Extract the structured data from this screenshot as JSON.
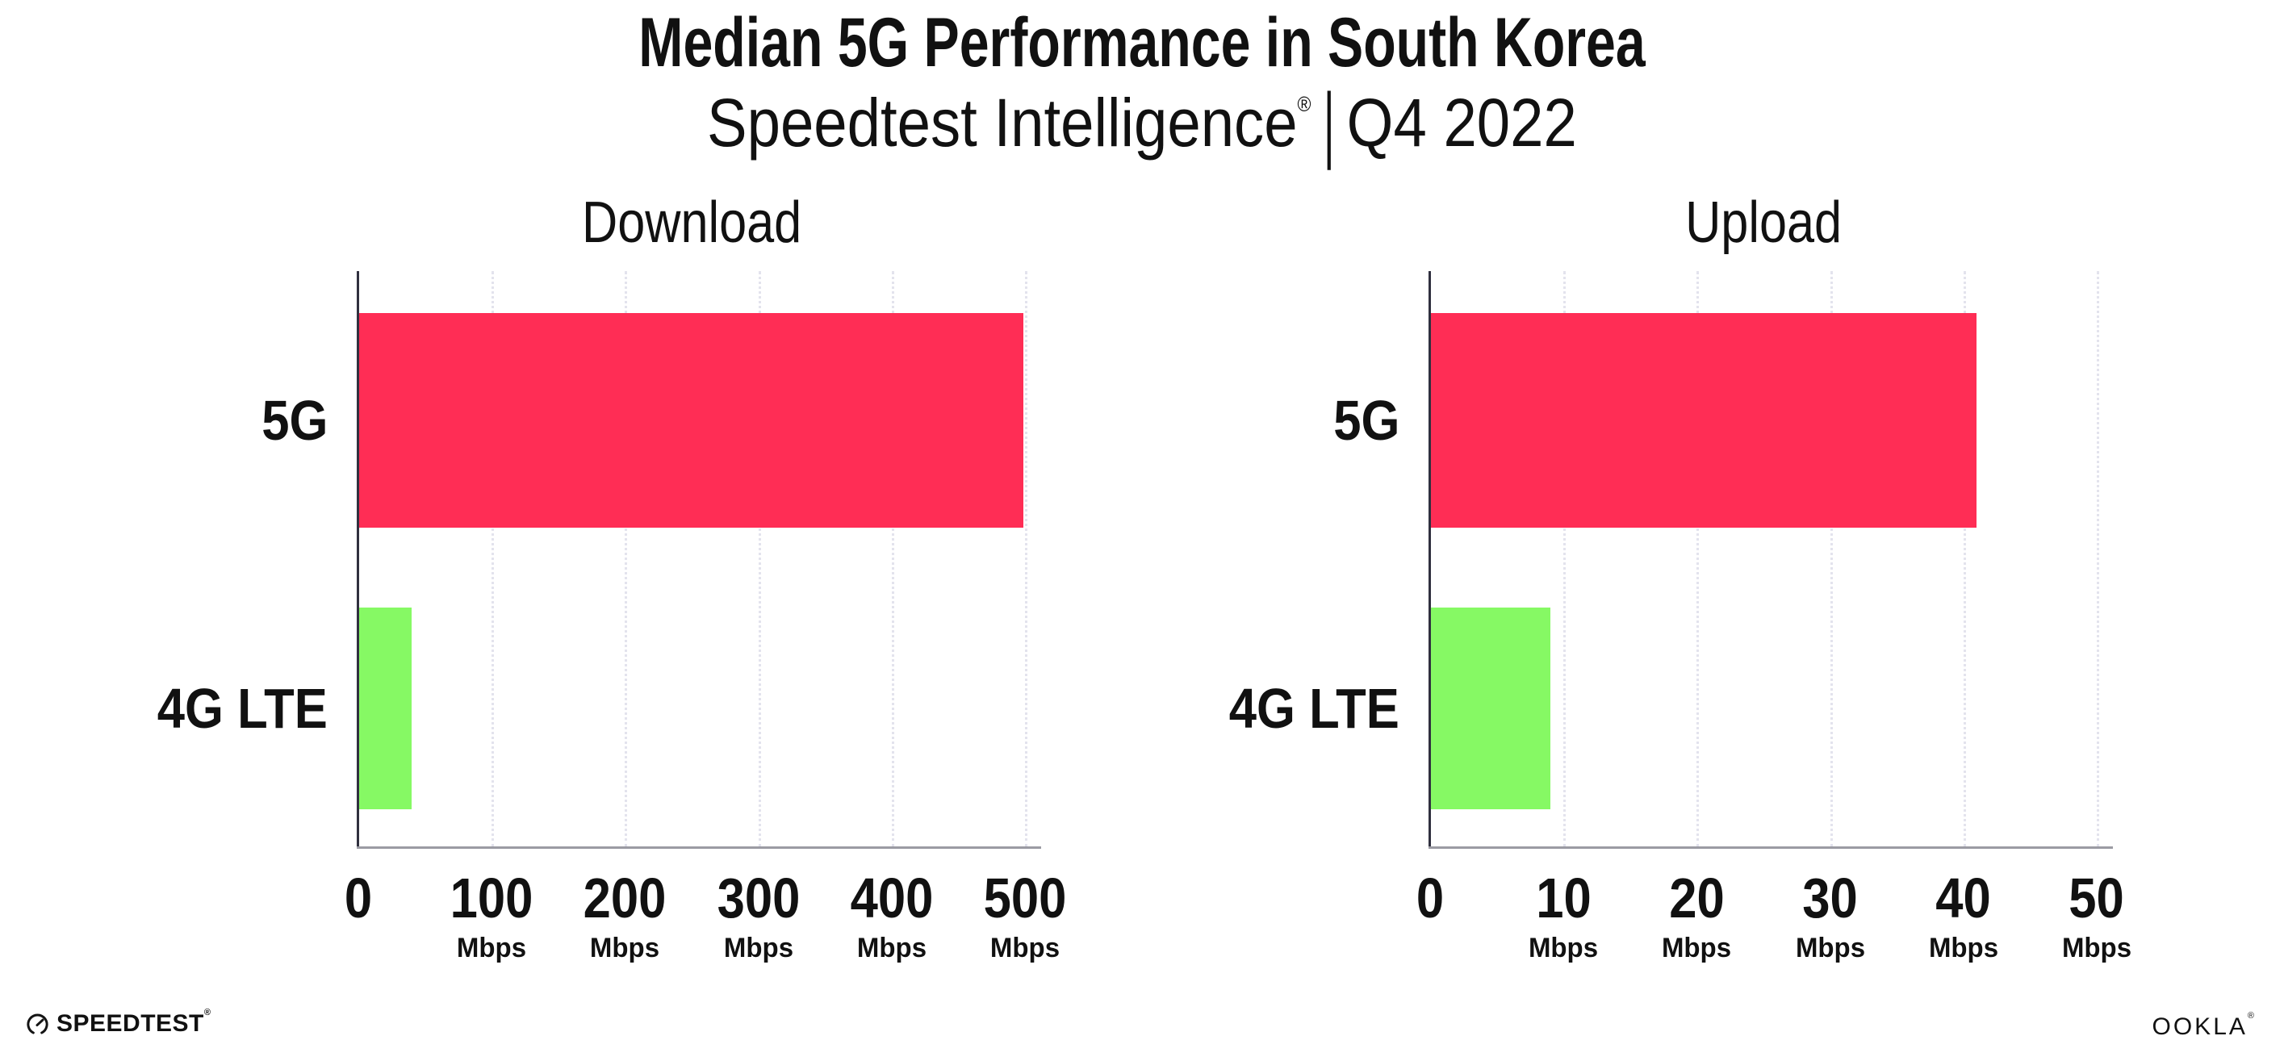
{
  "header": {
    "title": "Median 5G Performance in South Korea",
    "subtitle_brand": "Speedtest Intelligence",
    "subtitle_reg": "®",
    "subtitle_separator": "|",
    "subtitle_period": "Q4 2022"
  },
  "colors": {
    "bar_5g": "#FF2D55",
    "bar_4g_lte": "#86F964",
    "gridline": "#E3E3ED",
    "axis_spine": "#30303F",
    "axis_baseline": "#9B9BA3",
    "text": "#111111",
    "background": "#FFFFFF"
  },
  "chart_data": [
    {
      "type": "bar",
      "orientation": "horizontal",
      "title": "Download",
      "categories": [
        "5G",
        "4G LTE"
      ],
      "values": [
        499,
        40
      ],
      "unit": "Mbps",
      "xlim": [
        0,
        500
      ],
      "xticks": [
        0,
        100,
        200,
        300,
        400,
        500
      ],
      "grid": "vertical-dotted",
      "legend": "none",
      "bar_colors": [
        "#FF2D55",
        "#86F964"
      ]
    },
    {
      "type": "bar",
      "orientation": "horizontal",
      "title": "Upload",
      "categories": [
        "5G",
        "4G LTE"
      ],
      "values": [
        41,
        9
      ],
      "unit": "Mbps",
      "xlim": [
        0,
        50
      ],
      "xticks": [
        0,
        10,
        20,
        30,
        40,
        50
      ],
      "grid": "vertical-dotted",
      "legend": "none",
      "bar_colors": [
        "#FF2D55",
        "#86F964"
      ]
    }
  ],
  "footer": {
    "speedtest_logo_text": "SPEEDTEST",
    "speedtest_reg": "®",
    "ookla_logo_text": "OOKLA",
    "ookla_reg": "®"
  }
}
